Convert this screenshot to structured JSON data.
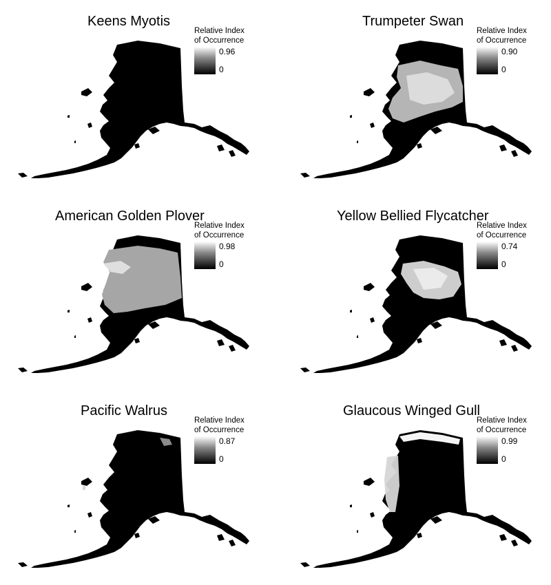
{
  "legend": {
    "title_line1": "Relative Index",
    "title_line2": "of Occurrence",
    "min_label": "0"
  },
  "panels": [
    {
      "title": "Keens Myotis",
      "max_label": "0.96",
      "overlay": "none"
    },
    {
      "title": "Trumpeter Swan",
      "max_label": "0.90",
      "overlay": "interior"
    },
    {
      "title": "American Golden Plover",
      "max_label": "0.98",
      "overlay": "gray-west"
    },
    {
      "title": "Yellow Bellied Flycatcher",
      "max_label": "0.74",
      "overlay": "interior-east"
    },
    {
      "title": "Pacific Walrus",
      "max_label": "0.87",
      "overlay": "north-coast"
    },
    {
      "title": "Glaucous Winged Gull",
      "max_label": "0.99",
      "overlay": "coast-west"
    }
  ]
}
